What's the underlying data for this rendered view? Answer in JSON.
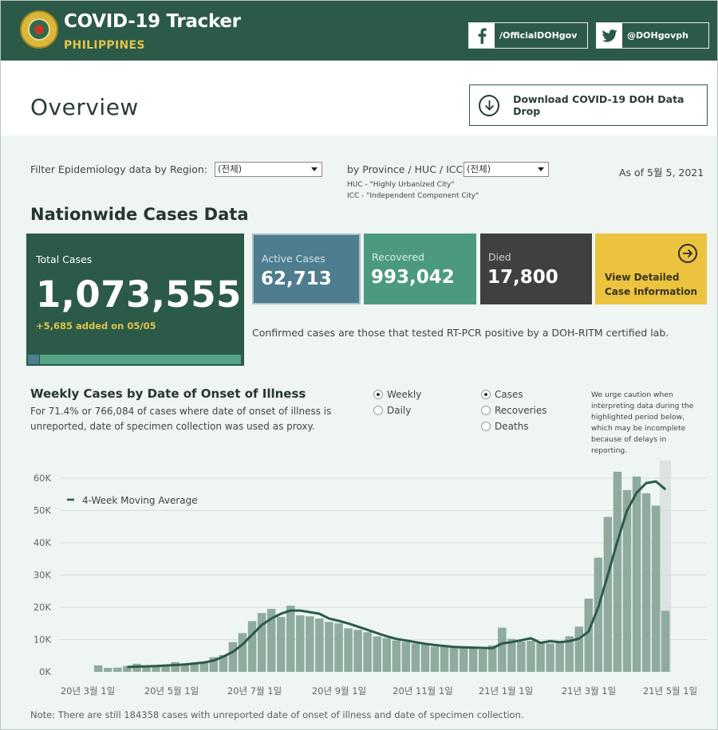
{
  "header": {
    "title": "COVID-19 Tracker",
    "subtitle": "PHILIPPINES",
    "facebook": "/OfficialDOHgov",
    "twitter": "@DOHgovph"
  },
  "overview": {
    "title": "Overview",
    "download_label": "Download COVID-19 DOH Data Drop"
  },
  "filters": {
    "region_label": "Filter Epidemiology data by Region:",
    "region_value": "(전체)",
    "province_label": "by Province / HUC / ICC:",
    "province_value": "(전체)",
    "huc_note": "HUC - \"Highly Urbanized City\"",
    "icc_note": "ICC - \"Independent Component City\"",
    "as_of": "As of 5월 5, 2021"
  },
  "nationwide": {
    "title": "Nationwide Cases Data",
    "total_label": "Total Cases",
    "total_value": "1,073,555",
    "added": "+5,685 added on 05/05",
    "active_label": "Active Cases",
    "active_value": "62,713",
    "recovered_label": "Recovered",
    "recovered_value": "993,042",
    "died_label": "Died",
    "died_value": "17,800",
    "view_line1": "View Detailed",
    "view_line2": "Case Information",
    "confirmed_note": "Confirmed cases are those that tested RT-PCR positive by a DOH-RITM certified lab.",
    "colors": {
      "total": "#2c5a48",
      "active": "#4d7d8f",
      "recovered": "#4c9a7d",
      "died": "#404040",
      "view": "#ebc33f"
    }
  },
  "weekly": {
    "title": "Weekly Cases by Date of Onset of Illness",
    "desc_line1": "For 71.4% or 766,084 of cases where date of onset of illness is",
    "desc_line2": "unreported, date of specimen collection was used as proxy.",
    "period_options": [
      {
        "label": "Weekly",
        "selected": true
      },
      {
        "label": "Daily",
        "selected": false
      }
    ],
    "measure_options": [
      {
        "label": "Cases",
        "selected": true
      },
      {
        "label": "Recoveries",
        "selected": false
      },
      {
        "label": "Deaths",
        "selected": false
      }
    ],
    "caution": "We urge caution when interpreting data during the highlighted period below, which may be incomplete because of delays in reporting."
  },
  "chart_data": {
    "type": "bar",
    "title": "Weekly Cases by Date of Onset of Illness",
    "ylim": [
      0,
      60000
    ],
    "yticks": [
      "0K",
      "10K",
      "20K",
      "30K",
      "40K",
      "50K",
      "60K"
    ],
    "xticks": [
      "20년 3월 1일",
      "20년 5월 1일",
      "20년 7월 1일",
      "20년 9월 1일",
      "20년 11월 1일",
      "21년 1월 1일",
      "21년 3월 1일",
      "21년 5월 1일"
    ],
    "legend": "4-Week Moving Average",
    "bar_color": "#8fab9e",
    "line_color": "#2c5a48",
    "highlight_last_weeks": 1,
    "series": [
      {
        "name": "Cases",
        "values": [
          2000,
          1200,
          1300,
          1800,
          2500,
          1400,
          1900,
          2200,
          3000,
          2600,
          2600,
          3000,
          4500,
          5200,
          9200,
          12000,
          15700,
          18200,
          19500,
          17000,
          20500,
          17500,
          17200,
          16500,
          15500,
          15000,
          13500,
          13000,
          12300,
          11000,
          10400,
          9700,
          9300,
          8800,
          8500,
          7800,
          7700,
          7700,
          7400,
          7300,
          7000,
          8200,
          13700,
          10200,
          9400,
          9600,
          9000,
          8800,
          9400,
          11000,
          14000,
          22700,
          35400,
          48000,
          62000,
          56300,
          60500,
          55300,
          51500,
          18900
        ]
      },
      {
        "name": "4-Week Moving Average",
        "values": [
          null,
          null,
          null,
          1500,
          1600,
          1700,
          1800,
          1950,
          2100,
          2300,
          2600,
          2900,
          3500,
          4700,
          6200,
          8500,
          11500,
          14500,
          16500,
          18000,
          19000,
          19000,
          18500,
          18000,
          16500,
          15800,
          15000,
          14000,
          13000,
          12000,
          11000,
          10200,
          9700,
          9200,
          8700,
          8300,
          8000,
          7700,
          7600,
          7500,
          7400,
          7300,
          8800,
          9200,
          9800,
          10400,
          9000,
          9500,
          9200,
          9500,
          10300,
          12500,
          20000,
          30000,
          40500,
          50000,
          55500,
          58500,
          59000,
          56500
        ]
      }
    ]
  },
  "footer": {
    "note": "Note: There are still 184358 cases with unreported date of onset of illness and date of specimen collection."
  }
}
